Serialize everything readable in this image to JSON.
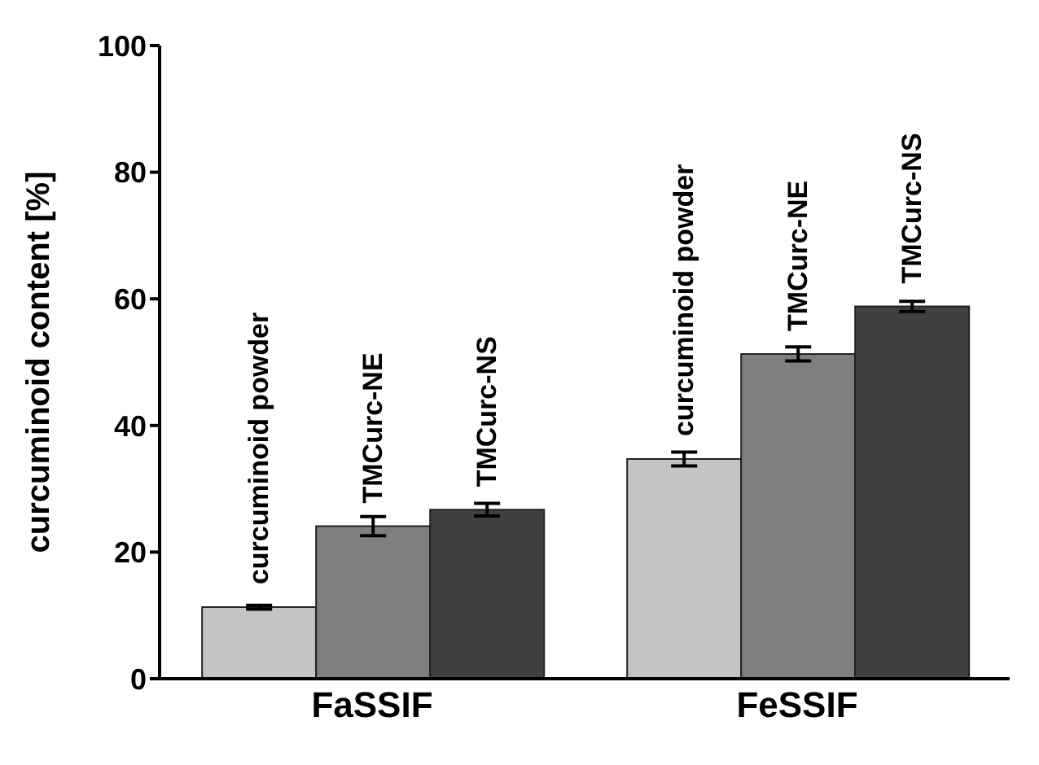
{
  "chart_data": {
    "type": "bar",
    "ylabel": "curcuminoid content [%]",
    "categories": [
      "FaSSIF",
      "FeSSIF"
    ],
    "series": [
      {
        "name": "curcuminoid powder",
        "color": "#c4c4c4",
        "values": [
          11.3,
          34.7
        ],
        "errors": [
          0.3,
          1.1
        ]
      },
      {
        "name": "TMCurc-NE",
        "color": "#7f7f7f",
        "values": [
          24.1,
          51.3
        ],
        "errors": [
          1.5,
          1.1
        ]
      },
      {
        "name": "TMCurc-NS",
        "color": "#404040",
        "values": [
          26.7,
          58.8
        ],
        "errors": [
          1.0,
          0.8
        ]
      }
    ],
    "ylim": [
      0,
      100
    ],
    "yticks": [
      0,
      20,
      40,
      60,
      80,
      100
    ],
    "grid": false,
    "legend": false
  }
}
